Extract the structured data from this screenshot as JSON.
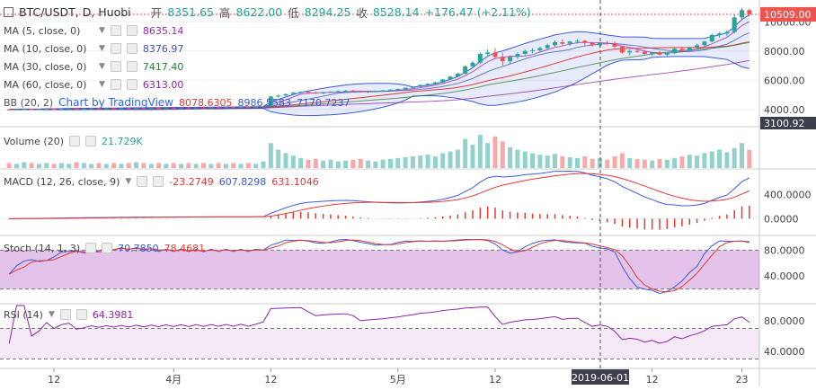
{
  "header": {
    "symbol_label": "BTC/USDT, D, Huobi",
    "open_label": "开",
    "open_value": "8351.65",
    "high_label": "高",
    "high_value": "8622.00",
    "low_label": "低",
    "low_value": "8294.25",
    "close_label": "收",
    "close_value": "8528.14",
    "change_value": "+176.47 (+2.11%)"
  },
  "colors": {
    "up": "#26a69a",
    "down": "#ef5350",
    "ma5": "#9c27b0",
    "ma10": "#3f51b5",
    "ma30": "#2e7d32",
    "ma60": "#8e24aa",
    "macd": "#3b5bdb",
    "signal": "#e53935",
    "stoch_k": "#3b5bdb",
    "stoch_d": "#e53935",
    "rsi": "#8e24aa"
  },
  "indicators": [
    {
      "label": "MA (5, close, 0)",
      "value": "8635.14",
      "color": "#9c27b0"
    },
    {
      "label": "MA (10, close, 0)",
      "value": "8376.97",
      "color": "#3f51b5"
    },
    {
      "label": "MA (30, close, 0)",
      "value": "7417.40",
      "color": "#2e7d32"
    },
    {
      "label": "MA (60, close, 0)",
      "value": "6313.00",
      "color": "#8e24aa"
    }
  ],
  "bb": {
    "label": "BB (20, 2)",
    "values": [
      "8078.6305",
      "8986.5583",
      "7170.7237"
    ]
  },
  "watermark": "Chart by TradingView",
  "volume": {
    "label": "Volume (20)",
    "value": "21.729K"
  },
  "macd": {
    "label": "MACD (12, 26, close, 9)",
    "values": [
      "-23.2749",
      "607.8298",
      "631.1046"
    ]
  },
  "stoch": {
    "label": "Stoch (14, 1, 3)",
    "values": [
      "70.7850",
      "78.4681"
    ]
  },
  "rsi": {
    "label": "RSI (14)",
    "value": "64.3981"
  },
  "price_axis": {
    "ticks": [
      "10000.00",
      "8000.00",
      "6000.00",
      "4000.00"
    ],
    "last_price": "10509.00",
    "low_tag": "3100.92"
  },
  "macd_axis": {
    "ticks": [
      "400.0000",
      "0.0000"
    ]
  },
  "stoch_axis": {
    "ticks": [
      "80.0000",
      "40.0000"
    ]
  },
  "rsi_axis": {
    "ticks": [
      "80.0000",
      "40.0000"
    ]
  },
  "time_axis": {
    "ticks": [
      "12",
      "4月",
      "12",
      "5月",
      "12",
      "12",
      "23"
    ],
    "crosshair_date": "2019-06-01"
  },
  "chart_data": {
    "type": "candlestick",
    "symbol": "BTC/USDT",
    "interval": "D",
    "exchange": "Huobi",
    "y_range": [
      3000,
      11000
    ],
    "last_close": 10509.0,
    "ohlc": [
      [
        4000,
        4030,
        3960,
        3990
      ],
      [
        3990,
        4020,
        3950,
        4005
      ],
      [
        4005,
        4040,
        3980,
        4020
      ],
      [
        4020,
        4050,
        3990,
        4000
      ],
      [
        4000,
        4030,
        3960,
        4010
      ],
      [
        4010,
        4060,
        3990,
        4040
      ],
      [
        4040,
        4070,
        4010,
        4030
      ],
      [
        4030,
        4060,
        4000,
        4050
      ],
      [
        4050,
        4080,
        4020,
        4060
      ],
      [
        4060,
        4090,
        4030,
        4045
      ],
      [
        4045,
        4075,
        4010,
        4055
      ],
      [
        4055,
        4090,
        4030,
        4070
      ],
      [
        4070,
        4100,
        4040,
        4065
      ],
      [
        4065,
        4090,
        4030,
        4080
      ],
      [
        4080,
        4110,
        4050,
        4075
      ],
      [
        4075,
        4100,
        4040,
        4090
      ],
      [
        4090,
        4120,
        4060,
        4085
      ],
      [
        4085,
        4110,
        4050,
        4100
      ],
      [
        4100,
        4130,
        4070,
        4095
      ],
      [
        4095,
        4120,
        4060,
        4110
      ],
      [
        4110,
        4140,
        4080,
        4105
      ],
      [
        4105,
        4130,
        4070,
        4120
      ],
      [
        4120,
        4150,
        4090,
        4115
      ],
      [
        4115,
        4140,
        4080,
        4130
      ],
      [
        4130,
        4160,
        4100,
        4125
      ],
      [
        4125,
        4150,
        4090,
        4140
      ],
      [
        4140,
        4170,
        4110,
        4135
      ],
      [
        4135,
        4160,
        4100,
        4150
      ],
      [
        4150,
        4180,
        4120,
        4145
      ],
      [
        4145,
        4170,
        4110,
        4160
      ],
      [
        4160,
        4190,
        4130,
        4155
      ],
      [
        4155,
        4180,
        4120,
        4170
      ],
      [
        4170,
        4200,
        4140,
        4165
      ],
      [
        4165,
        4190,
        4130,
        4180
      ],
      [
        4180,
        4230,
        4150,
        4200
      ],
      [
        4200,
        4900,
        4180,
        4880
      ],
      [
        4880,
        5000,
        4800,
        4950
      ],
      [
        4950,
        5100,
        4900,
        5050
      ],
      [
        5050,
        5200,
        5000,
        5150
      ],
      [
        5150,
        5250,
        5080,
        5200
      ],
      [
        5200,
        5250,
        5100,
        5150
      ],
      [
        5150,
        5200,
        5050,
        5100
      ],
      [
        5100,
        5200,
        5050,
        5180
      ],
      [
        5180,
        5250,
        5120,
        5220
      ],
      [
        5220,
        5300,
        5150,
        5250
      ],
      [
        5250,
        5320,
        5180,
        5280
      ],
      [
        5280,
        5350,
        5200,
        5260
      ],
      [
        5260,
        5300,
        5150,
        5200
      ],
      [
        5200,
        5280,
        5120,
        5240
      ],
      [
        5240,
        5300,
        5180,
        5270
      ],
      [
        5270,
        5330,
        5200,
        5300
      ],
      [
        5300,
        5380,
        5250,
        5350
      ],
      [
        5350,
        5420,
        5280,
        5400
      ],
      [
        5400,
        5500,
        5350,
        5480
      ],
      [
        5480,
        5600,
        5420,
        5550
      ],
      [
        5550,
        5700,
        5500,
        5680
      ],
      [
        5680,
        5800,
        5600,
        5750
      ],
      [
        5750,
        5900,
        5700,
        5850
      ],
      [
        5850,
        6100,
        5800,
        6050
      ],
      [
        6050,
        6300,
        6000,
        6250
      ],
      [
        6250,
        6500,
        6200,
        6450
      ],
      [
        6450,
        7000,
        6400,
        6950
      ],
      [
        6950,
        7300,
        6900,
        7200
      ],
      [
        7200,
        7900,
        7100,
        7800
      ],
      [
        7800,
        8100,
        7600,
        7900
      ],
      [
        7900,
        8200,
        7500,
        7600
      ],
      [
        7600,
        7900,
        7000,
        7300
      ],
      [
        7300,
        7700,
        7100,
        7600
      ],
      [
        7600,
        7900,
        7450,
        7800
      ],
      [
        7800,
        8100,
        7700,
        8000
      ],
      [
        8000,
        8200,
        7850,
        8050
      ],
      [
        8050,
        8300,
        7950,
        8200
      ],
      [
        8200,
        8500,
        8100,
        8400
      ],
      [
        8400,
        8700,
        8300,
        8600
      ],
      [
        8600,
        8800,
        8400,
        8500
      ],
      [
        8500,
        8700,
        8350,
        8650
      ],
      [
        8650,
        8800,
        8500,
        8700
      ],
      [
        8700,
        8750,
        8400,
        8550
      ],
      [
        8550,
        8650,
        8300,
        8400
      ],
      [
        8400,
        8600,
        8250,
        8550
      ],
      [
        8550,
        8700,
        8400,
        8500
      ],
      [
        8500,
        8650,
        8200,
        8300
      ],
      [
        8300,
        8350,
        7800,
        7900
      ],
      [
        7900,
        8100,
        7700,
        8000
      ],
      [
        8000,
        8150,
        7850,
        7950
      ],
      [
        7950,
        8050,
        7750,
        7800
      ],
      [
        7800,
        7950,
        7650,
        7900
      ],
      [
        7900,
        8000,
        7700,
        7750
      ],
      [
        7750,
        7950,
        7650,
        7850
      ],
      [
        7850,
        8200,
        7800,
        8150
      ],
      [
        8150,
        8300,
        7950,
        8050
      ],
      [
        8050,
        8300,
        8000,
        8250
      ],
      [
        8250,
        8500,
        8150,
        8400
      ],
      [
        8400,
        8700,
        8350,
        8650
      ],
      [
        8650,
        9200,
        8600,
        9100
      ],
      [
        9100,
        9300,
        8900,
        9200
      ],
      [
        9200,
        9400,
        9000,
        9300
      ],
      [
        9300,
        10500,
        9200,
        10300
      ],
      [
        10300,
        10950,
        10100,
        10800
      ],
      [
        10800,
        10900,
        10400,
        10509
      ]
    ],
    "volume": [
      6,
      5,
      7,
      6,
      5,
      6,
      5,
      6,
      5,
      7,
      6,
      5,
      6,
      5,
      6,
      5,
      6,
      7,
      6,
      5,
      6,
      5,
      6,
      5,
      6,
      5,
      6,
      5,
      6,
      5,
      6,
      5,
      6,
      5,
      8,
      30,
      22,
      18,
      15,
      12,
      10,
      11,
      9,
      10,
      8,
      9,
      10,
      11,
      9,
      8,
      10,
      11,
      12,
      13,
      14,
      15,
      16,
      14,
      18,
      20,
      22,
      35,
      28,
      40,
      30,
      38,
      32,
      25,
      22,
      20,
      18,
      16,
      15,
      17,
      14,
      13,
      12,
      14,
      11,
      12,
      10,
      14,
      18,
      12,
      11,
      10,
      9,
      11,
      10,
      12,
      14,
      16,
      15,
      18,
      20,
      22,
      19,
      24,
      30,
      21.7
    ],
    "macd": {
      "values_label": [
        "-23.2749",
        "607.8298",
        "631.1046"
      ],
      "ylim": [
        -250,
        800
      ]
    },
    "stoch": {
      "k": 70.785,
      "d": 78.4681,
      "levels": [
        80,
        20
      ]
    },
    "rsi": {
      "value": 64.3981,
      "levels": [
        70,
        30
      ]
    },
    "crosshair_x_label": "2019-06-01"
  }
}
